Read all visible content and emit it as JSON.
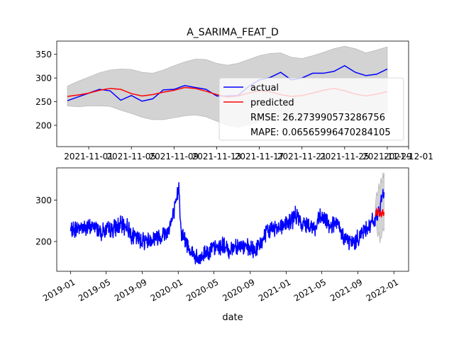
{
  "figure": {
    "title": "A_SARIMA_FEAT_D",
    "xlabel": "date"
  },
  "colors": {
    "actual": "#0000ff",
    "predicted": "#ff0000",
    "band": "#d3d3d3",
    "band_edge": "#b0b0b0"
  },
  "chart_data": [
    {
      "type": "line",
      "title": "A_SARIMA_FEAT_D",
      "xlabel": "",
      "ylabel": "",
      "x_type": "date",
      "xlim": [
        "2021-10-29",
        "2021-12-01"
      ],
      "ylim": [
        155,
        378
      ],
      "grid": false,
      "legend_position": "center-right",
      "x_ticks": [
        "2021-11-01",
        "2021-11-05",
        "2021-11-09",
        "2021-11-13",
        "2021-11-17",
        "2021-11-21",
        "2021-11-25",
        "2021-11-29",
        "2021-12-01"
      ],
      "x_tick_labels": [
        "2021-11-01",
        "2021-11-05",
        "2021-11-09",
        "2021-11-13",
        "2021-11-17",
        "2021-11-21",
        "2021-11-25",
        "2021-11-29",
        "2021-12-01"
      ],
      "y_ticks": [
        200,
        250,
        300,
        350
      ],
      "x": [
        "2021-10-30",
        "2021-10-31",
        "2021-11-01",
        "2021-11-02",
        "2021-11-03",
        "2021-11-04",
        "2021-11-05",
        "2021-11-06",
        "2021-11-07",
        "2021-11-08",
        "2021-11-09",
        "2021-11-10",
        "2021-11-11",
        "2021-11-12",
        "2021-11-13",
        "2021-11-14",
        "2021-11-15",
        "2021-11-16",
        "2021-11-17",
        "2021-11-18",
        "2021-11-19",
        "2021-11-20",
        "2021-11-21",
        "2021-11-22",
        "2021-11-23",
        "2021-11-24",
        "2021-11-25",
        "2021-11-26",
        "2021-11-27",
        "2021-11-28",
        "2021-11-29"
      ],
      "series": [
        {
          "name": "actual",
          "color": "#0000ff",
          "values": [
            252,
            260,
            268,
            276,
            273,
            253,
            263,
            251,
            256,
            275,
            276,
            284,
            280,
            276,
            262,
            262,
            263,
            282,
            296,
            301,
            312,
            296,
            300,
            310,
            310,
            314,
            326,
            312,
            305,
            308,
            319
          ]
        },
        {
          "name": "predicted",
          "color": "#ff0000",
          "values": [
            261,
            264,
            268,
            274,
            278,
            276,
            267,
            262,
            265,
            270,
            274,
            280,
            278,
            272,
            265,
            260,
            262,
            268,
            273,
            271,
            265,
            261,
            263,
            268,
            274,
            278,
            273,
            266,
            262,
            266,
            271
          ]
        }
      ],
      "band": {
        "lower": [
          241,
          239,
          241,
          241,
          240,
          232,
          225,
          217,
          212,
          212,
          216,
          220,
          222,
          218,
          209,
          200,
          196,
          201,
          207,
          211,
          211,
          208,
          214,
          219,
          224,
          229,
          231,
          228,
          226,
          226,
          226
        ],
        "upper": [
          283,
          293,
          302,
          311,
          317,
          319,
          318,
          312,
          310,
          317,
          326,
          334,
          340,
          339,
          331,
          327,
          331,
          339,
          347,
          352,
          353,
          344,
          341,
          347,
          354,
          362,
          367,
          362,
          353,
          359,
          366
        ]
      },
      "legend": {
        "entries": [
          "actual",
          "predicted"
        ],
        "annotations": [
          "RMSE: 26.273990573286756",
          "MAPE: 0.06565996470284105"
        ]
      }
    },
    {
      "type": "line",
      "title": "",
      "xlabel": "date",
      "ylabel": "",
      "x_type": "date",
      "xlim": [
        "2018-11-15",
        "2022-02-20"
      ],
      "ylim": [
        128,
        378
      ],
      "grid": false,
      "x_ticks": [
        "2019-01-01",
        "2019-05-01",
        "2019-09-01",
        "2020-01-01",
        "2020-05-01",
        "2020-09-01",
        "2021-01-01",
        "2021-05-01",
        "2021-09-01",
        "2022-01-01"
      ],
      "x_tick_labels": [
        "2019-01",
        "2019-05",
        "2019-09",
        "2020-01",
        "2020-05",
        "2020-09",
        "2021-01",
        "2021-05",
        "2021-09",
        "2022-01"
      ],
      "y_ticks": [
        200,
        300
      ],
      "actual_anchors": [
        [
          "2019-01-01",
          225
        ],
        [
          "2019-02-01",
          235
        ],
        [
          "2019-03-01",
          232
        ],
        [
          "2019-03-20",
          238
        ],
        [
          "2019-04-15",
          225
        ],
        [
          "2019-05-15",
          228
        ],
        [
          "2019-06-15",
          238
        ],
        [
          "2019-07-10",
          238
        ],
        [
          "2019-08-01",
          212
        ],
        [
          "2019-08-25",
          205
        ],
        [
          "2019-09-20",
          202
        ],
        [
          "2019-10-15",
          210
        ],
        [
          "2019-11-05",
          215
        ],
        [
          "2019-11-25",
          225
        ],
        [
          "2019-12-10",
          250
        ],
        [
          "2019-12-25",
          290
        ],
        [
          "2019-12-31",
          325
        ],
        [
          "2020-01-04",
          330
        ],
        [
          "2020-01-10",
          225
        ],
        [
          "2020-01-25",
          200
        ],
        [
          "2020-02-15",
          175
        ],
        [
          "2020-03-01",
          160
        ],
        [
          "2020-03-10",
          150
        ],
        [
          "2020-04-01",
          175
        ],
        [
          "2020-05-01",
          182
        ],
        [
          "2020-06-01",
          190
        ],
        [
          "2020-06-20",
          178
        ],
        [
          "2020-07-15",
          192
        ],
        [
          "2020-08-15",
          185
        ],
        [
          "2020-09-10",
          178
        ],
        [
          "2020-10-01",
          188
        ],
        [
          "2020-10-20",
          215
        ],
        [
          "2020-11-10",
          230
        ],
        [
          "2020-12-10",
          238
        ],
        [
          "2021-01-10",
          245
        ],
        [
          "2021-02-05",
          265
        ],
        [
          "2021-02-20",
          240
        ],
        [
          "2021-03-20",
          243
        ],
        [
          "2021-04-10",
          230
        ],
        [
          "2021-04-25",
          258
        ],
        [
          "2021-05-15",
          250
        ],
        [
          "2021-06-01",
          240
        ],
        [
          "2021-06-20",
          245
        ],
        [
          "2021-07-05",
          220
        ],
        [
          "2021-08-01",
          200
        ],
        [
          "2021-08-20",
          197
        ],
        [
          "2021-09-01",
          210
        ],
        [
          "2021-09-15",
          222
        ],
        [
          "2021-10-01",
          235
        ],
        [
          "2021-10-20",
          245
        ],
        [
          "2021-10-29",
          252
        ]
      ],
      "series": [
        {
          "name": "actual",
          "color": "#0000ff"
        },
        {
          "name": "predicted",
          "color": "#ff0000"
        }
      ],
      "band_ref": "chart_data.0.band"
    }
  ]
}
